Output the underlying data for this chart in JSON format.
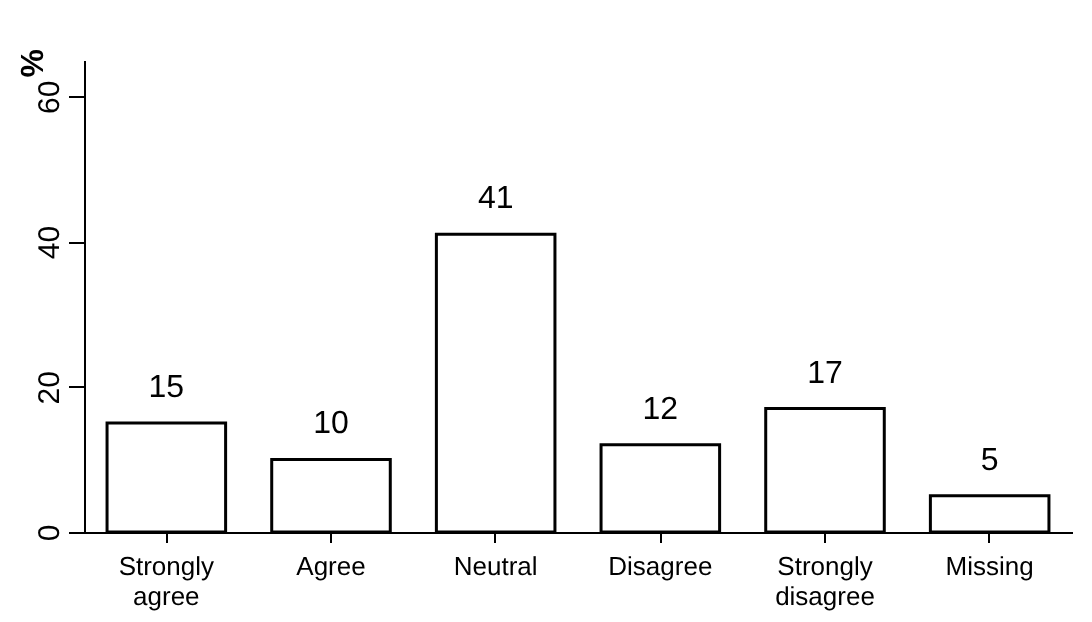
{
  "chart_data": {
    "type": "bar",
    "ylabel": "%",
    "categories": [
      "Strongly agree",
      "Agree",
      "Neutral",
      "Disagree",
      "Strongly disagree",
      "Missing"
    ],
    "values": [
      15,
      10,
      41,
      12,
      17,
      5
    ],
    "color": "#ffffff",
    "ylim": [
      0,
      65
    ],
    "yticks": [
      0,
      20,
      40,
      60
    ],
    "grid": false,
    "data_labels": true
  }
}
